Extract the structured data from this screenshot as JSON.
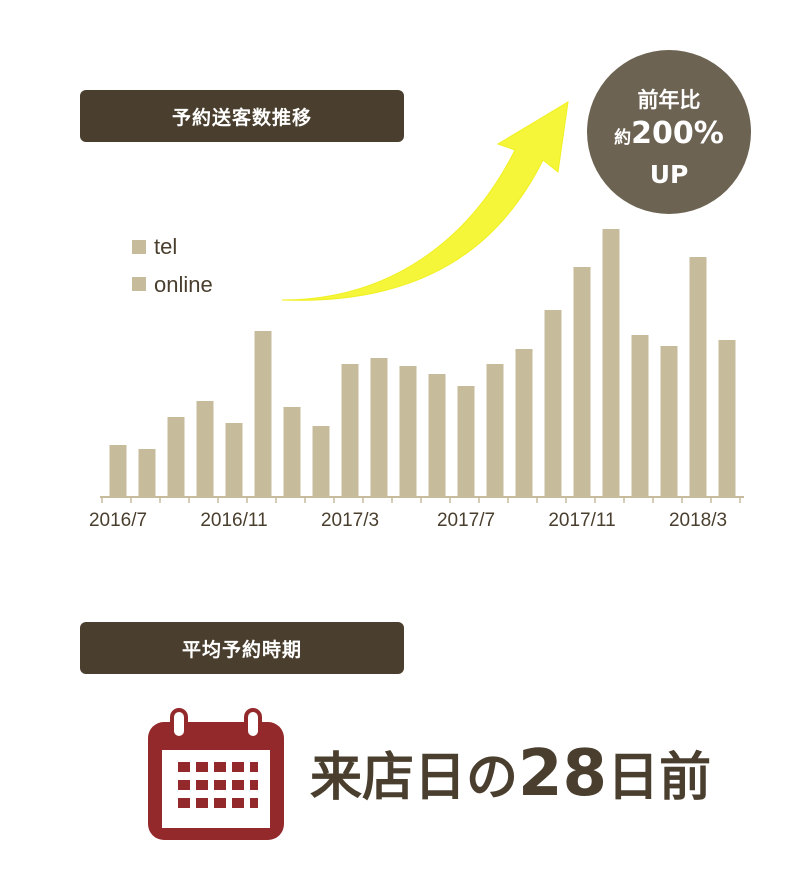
{
  "section1": {
    "label": "予約送客数推移"
  },
  "section2": {
    "label": "平均予約時期"
  },
  "badge": {
    "line1": "前年比",
    "prefix": "約",
    "percent": "200%",
    "line3": "UP"
  },
  "colors": {
    "bar": "#c6bb9a",
    "axis": "#c6bb9a",
    "label_bg": "#4a3f2e",
    "badge_bg": "#6d6353",
    "arrow": "#f5f53a",
    "calendar": "#94292c"
  },
  "headline": {
    "pre": "来店日の",
    "num": "28",
    "post": "日前"
  },
  "chart_data": {
    "type": "bar",
    "categories": [
      "2016/7",
      "2016/8",
      "2016/9",
      "2016/10",
      "2016/11",
      "2016/12",
      "2017/1",
      "2017/2",
      "2017/3",
      "2017/4",
      "2017/5",
      "2017/6",
      "2017/7",
      "2017/8",
      "2017/9",
      "2017/10",
      "2017/11",
      "2017/12",
      "2018/1",
      "2018/2",
      "2018/3",
      "2018/4",
      "2018/5"
    ],
    "tick_labels": [
      "2016/7",
      "2016/11",
      "2017/3",
      "2017/7",
      "2017/11",
      "2018/3"
    ],
    "legend": [
      "tel",
      "online"
    ],
    "values": [
      52,
      48,
      80,
      96,
      74,
      166,
      90,
      71,
      133,
      139,
      131,
      123,
      111,
      133,
      148,
      187,
      230,
      268,
      162,
      151,
      240,
      157,
      0
    ],
    "ylim": [
      0,
      280
    ],
    "grid": false
  }
}
